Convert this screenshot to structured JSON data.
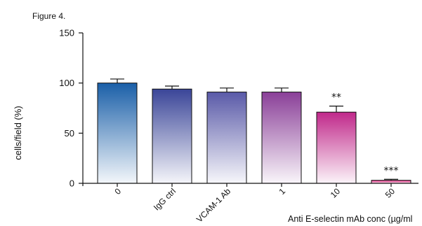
{
  "page": {
    "top_text": "",
    "figure_label": "Figure 4."
  },
  "chart_data": {
    "type": "bar",
    "title": "",
    "ylabel": "cells/field (%)",
    "xlabel": "Anti E-selectin mAb conc (µg/ml",
    "categories": [
      "0",
      "IgG ctrl",
      "VCAM-1 Ab",
      "1",
      "10",
      "50"
    ],
    "values": [
      100,
      94,
      91,
      91,
      71,
      3
    ],
    "errors": [
      4,
      3,
      4,
      4,
      6,
      1
    ],
    "significance": [
      "",
      "",
      "",
      "",
      "**",
      "***"
    ],
    "ylim": [
      0,
      150
    ],
    "yticks": [
      "0",
      "50",
      "100",
      "150"
    ],
    "grid": false,
    "colors": {
      "0": "#1a5fa8",
      "IgG ctrl": "#3a4598",
      "VCAM-1 Ab": "#5a5aa8",
      "1": "#8a3f98",
      "10": "#c0288a",
      "50": "#e01a78"
    }
  }
}
